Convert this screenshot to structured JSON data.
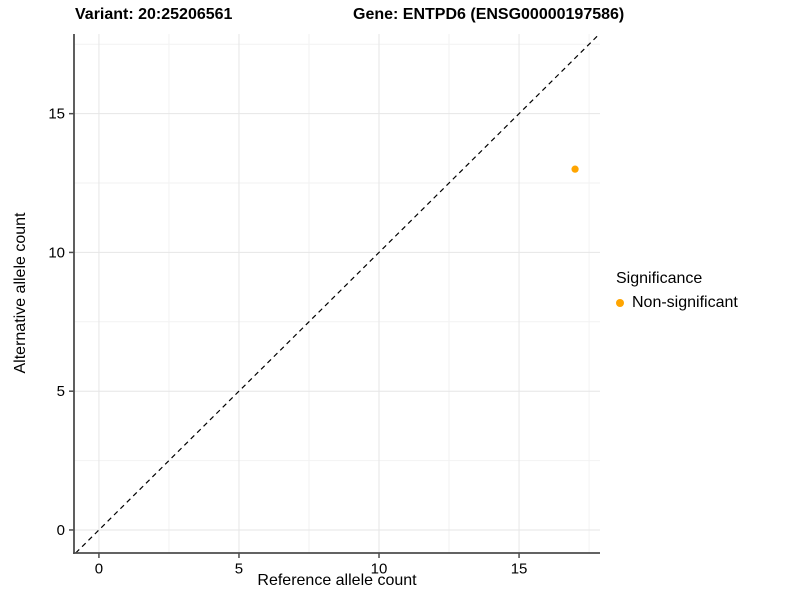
{
  "header": {
    "title_left": "Variant: 20:25206561",
    "title_right": "Gene: ENTPD6 (ENSG00000197586)"
  },
  "chart_data": {
    "type": "scatter",
    "xlabel": "Reference allele count",
    "ylabel": "Alternative allele count",
    "x_ticks": [
      0,
      5,
      10,
      15
    ],
    "y_ticks": [
      0,
      5,
      10,
      15
    ],
    "x_minor_ticks": [
      2.5,
      7.5,
      12.5,
      17.5
    ],
    "y_minor_ticks": [
      2.5,
      7.5,
      12.5,
      17.5
    ],
    "xlim": [
      -0.89,
      17.89
    ],
    "ylim": [
      -0.83,
      17.87
    ],
    "grid": true,
    "identity_line": {
      "style": "dashed",
      "slope": 1,
      "intercept": 0,
      "color": "#000000"
    },
    "series": [
      {
        "name": "Non-significant",
        "color": "#FFA500",
        "points": [
          [
            17,
            13
          ]
        ]
      }
    ],
    "legend": {
      "position": "right",
      "title": "Significance",
      "items": [
        {
          "label": "Non-significant",
          "color": "#FFA500"
        }
      ]
    }
  },
  "colors": {
    "background": "#FFFFFF",
    "grid_major": "#E6E6E6",
    "grid_minor": "#F2F2F2",
    "axis_line": "#4D4D4D",
    "text": "#000000"
  }
}
